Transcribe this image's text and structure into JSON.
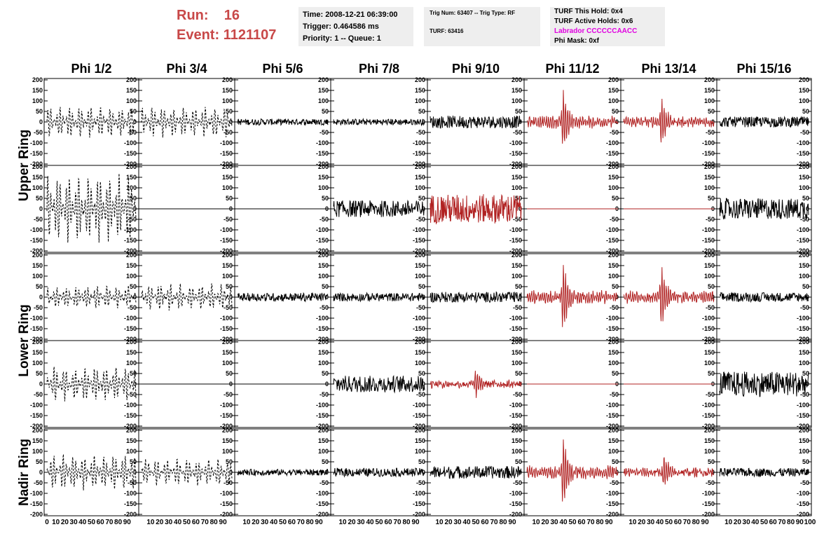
{
  "header": {
    "run_label": "Run:",
    "run_value": "16",
    "event_label": "Event:",
    "event_value": "1121107"
  },
  "info": {
    "time": "Time: 2008-12-21 06:39:00",
    "trigger": "Trigger: 0.464586 ms",
    "priority": "Priority: 1 -- Queue: 1",
    "trig_num": "Trig Num: 63407 -- Trig Type: RF",
    "turf": "TURF: 63416",
    "turf_hold": "TURF This Hold: 0x4",
    "turf_active": "TURF Active Holds: 0x6",
    "labrador": "Labrador CCCCCCAACC",
    "phi_mask": "Phi Mask: 0xf"
  },
  "colors": {
    "black": "#000000",
    "red": "#b02020",
    "header_red": "#c84848",
    "magenta": "#e000e0",
    "panel_bg": "#eeeeee"
  },
  "chart_data": {
    "type": "line",
    "columns": [
      "Phi 1/2",
      "Phi 3/4",
      "Phi 5/6",
      "Phi 7/8",
      "Phi 9/10",
      "Phi 11/12",
      "Phi 13/14",
      "Phi 15/16"
    ],
    "rows": [
      "Upper Ring",
      "Upper Ring",
      "Lower Ring",
      "Lower Ring",
      "Nadir Ring"
    ],
    "row_labels": [
      {
        "text": "Upper Ring",
        "rows": [
          0,
          1
        ]
      },
      {
        "text": "Lower Ring",
        "rows": [
          2,
          3
        ]
      },
      {
        "text": "Nadir Ring",
        "rows": [
          4
        ]
      }
    ],
    "ylim": [
      -200,
      200
    ],
    "yticks": [
      200,
      150,
      100,
      50,
      0,
      -50,
      -100,
      -150,
      -200
    ],
    "xlim": [
      0,
      100
    ],
    "xticks_first": [
      0,
      10,
      20,
      30,
      40,
      50,
      60,
      70,
      80,
      90
    ],
    "xticks": [
      10,
      20,
      30,
      40,
      50,
      60,
      70,
      80,
      90
    ],
    "xticks_last_extra": "100",
    "panels": [
      [
        "dashed",
        "dashed",
        "black",
        "black",
        "black",
        "red",
        "red",
        "black"
      ],
      [
        "dashed",
        "flat",
        "flat",
        "black",
        "red",
        "flatred",
        "flatred",
        "black"
      ],
      [
        "dashed",
        "dashed",
        "black",
        "black",
        "black",
        "red",
        "red",
        "black"
      ],
      [
        "dashed",
        "flat",
        "flat",
        "black",
        "red",
        "flatred",
        "flatred",
        "black"
      ],
      [
        "dashed",
        "dashed",
        "black",
        "black",
        "black",
        "red",
        "red",
        "black"
      ]
    ],
    "waveforms": [
      [
        {
          "amp": 70,
          "noise": 10
        },
        {
          "amp": 70,
          "noise": 10
        },
        {
          "amp": 15,
          "noise": 4
        },
        {
          "amp": 15,
          "noise": 4
        },
        {
          "amp": 30,
          "noise": 8
        },
        {
          "amp": 150,
          "noise": 15,
          "pulse": 40
        },
        {
          "amp": 120,
          "noise": 15,
          "pulse": 42
        },
        {
          "amp": 25,
          "noise": 6
        }
      ],
      [
        {
          "amp": 160,
          "noise": 20
        },
        {
          "amp": 0
        },
        {
          "amp": 0
        },
        {
          "amp": 40,
          "noise": 12
        },
        {
          "amp": 70,
          "noise": 15
        },
        {
          "amp": 0
        },
        {
          "amp": 0
        },
        {
          "amp": 50,
          "noise": 15
        }
      ],
      [
        {
          "amp": 50,
          "noise": 10
        },
        {
          "amp": 60,
          "noise": 10
        },
        {
          "amp": 20,
          "noise": 5
        },
        {
          "amp": 20,
          "noise": 5
        },
        {
          "amp": 25,
          "noise": 6
        },
        {
          "amp": 170,
          "noise": 15,
          "pulse": 40
        },
        {
          "amp": 140,
          "noise": 15,
          "pulse": 42
        },
        {
          "amp": 22,
          "noise": 6
        }
      ],
      [
        {
          "amp": 80,
          "noise": 10
        },
        {
          "amp": 0
        },
        {
          "amp": 0
        },
        {
          "amp": 40,
          "noise": 10
        },
        {
          "amp": 60,
          "noise": 15,
          "pulse": 50
        },
        {
          "amp": 0
        },
        {
          "amp": 0
        },
        {
          "amp": 60,
          "noise": 15
        }
      ],
      [
        {
          "amp": 80,
          "noise": 10
        },
        {
          "amp": 60,
          "noise": 10
        },
        {
          "amp": 15,
          "noise": 4
        },
        {
          "amp": 20,
          "noise": 5
        },
        {
          "amp": 30,
          "noise": 7
        },
        {
          "amp": 160,
          "noise": 15,
          "pulse": 40
        },
        {
          "amp": 80,
          "noise": 15,
          "pulse": 45
        },
        {
          "amp": 20,
          "noise": 5
        }
      ]
    ]
  }
}
